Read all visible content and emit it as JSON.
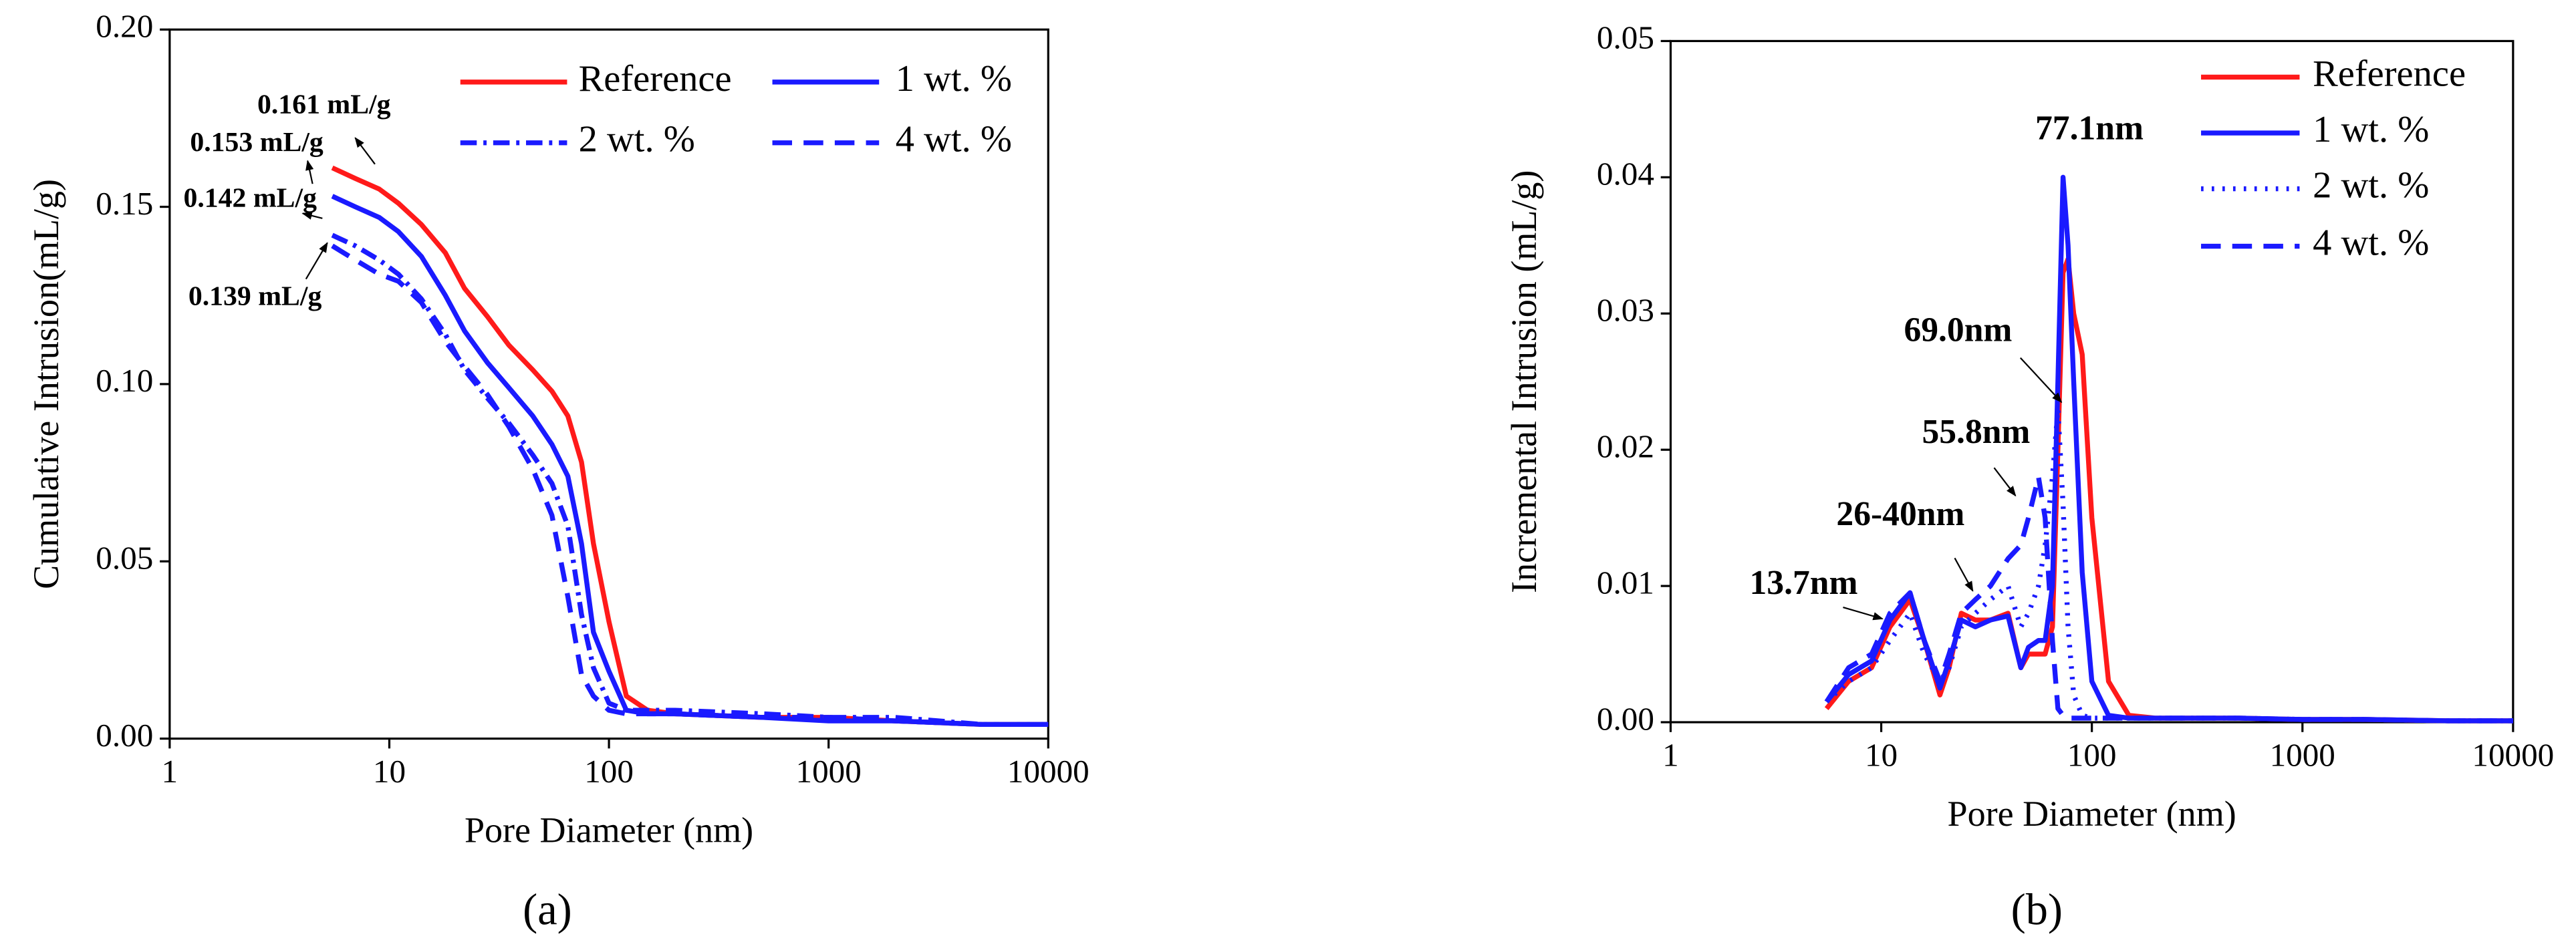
{
  "chart_data": [
    {
      "type": "line",
      "panel_label": "(a)",
      "x_label": "Pore Diameter (nm)",
      "y_label": "Cumulative Intrusion(mL/g)",
      "xscale": "log",
      "xlim": [
        1,
        10000
      ],
      "xticks": [
        1,
        10,
        100,
        1000,
        10000
      ],
      "ylim": [
        0,
        0.2
      ],
      "yticks": [
        {
          "value": 0,
          "label": "0.00"
        },
        {
          "value": 0.05,
          "label": "0.05"
        },
        {
          "value": 0.1,
          "label": "0.10"
        },
        {
          "value": 0.15,
          "label": "0.15"
        },
        {
          "value": 0.2,
          "label": "0.20"
        }
      ],
      "legend": "upper right",
      "x": [
        5.5,
        7,
        9,
        11,
        14,
        18,
        22,
        28,
        35,
        45,
        55,
        65,
        75,
        85,
        100,
        120,
        150,
        200,
        500,
        1000,
        2000,
        5000,
        10000
      ],
      "series": [
        {
          "name": "Reference",
          "color": "#ff1a1a",
          "linestyle": "solid",
          "values": [
            0.161,
            0.158,
            0.155,
            0.151,
            0.145,
            0.137,
            0.127,
            0.119,
            0.111,
            0.104,
            0.098,
            0.091,
            0.078,
            0.055,
            0.033,
            0.012,
            0.008,
            0.007,
            0.006,
            0.006,
            0.005,
            0.004,
            0.004
          ]
        },
        {
          "name": "1 wt. %",
          "color": "#1a1aff",
          "linestyle": "solid",
          "values": [
            0.153,
            0.15,
            0.147,
            0.143,
            0.136,
            0.125,
            0.115,
            0.106,
            0.099,
            0.091,
            0.083,
            0.074,
            0.055,
            0.03,
            0.019,
            0.008,
            0.007,
            0.007,
            0.006,
            0.005,
            0.005,
            0.004,
            0.004
          ]
        },
        {
          "name": "2 wt. %",
          "color": "#1a1aff",
          "linestyle": "dashdot",
          "values": [
            0.142,
            0.139,
            0.135,
            0.131,
            0.124,
            0.114,
            0.104,
            0.096,
            0.089,
            0.08,
            0.072,
            0.06,
            0.035,
            0.02,
            0.01,
            0.008,
            0.008,
            0.008,
            0.007,
            0.006,
            0.006,
            0.004,
            0.004
          ]
        },
        {
          "name": "4 wt. %",
          "color": "#1a1aff",
          "linestyle": "dash",
          "values": [
            0.139,
            0.135,
            0.131,
            0.129,
            0.123,
            0.112,
            0.105,
            0.097,
            0.088,
            0.076,
            0.063,
            0.04,
            0.018,
            0.012,
            0.008,
            0.007,
            0.007,
            0.007,
            0.006,
            0.006,
            0.005,
            0.004,
            0.004
          ]
        }
      ],
      "annotations": [
        "0.161 mL/g",
        "0.153 mL/g",
        "0.142 mL/g",
        "0.139 mL/g"
      ]
    },
    {
      "type": "line",
      "panel_label": "(b)",
      "x_label": "Pore Diameter (nm)",
      "y_label": "Incremental Intrusion (mL/g)",
      "xscale": "log",
      "xlim": [
        1,
        10000
      ],
      "xticks": [
        1,
        10,
        100,
        1000,
        10000
      ],
      "ylim": [
        0,
        0.05
      ],
      "yticks": [
        {
          "value": 0,
          "label": "0.00"
        },
        {
          "value": 0.01,
          "label": "0.01"
        },
        {
          "value": 0.02,
          "label": "0.02"
        },
        {
          "value": 0.03,
          "label": "0.03"
        },
        {
          "value": 0.04,
          "label": "0.04"
        },
        {
          "value": 0.05,
          "label": "0.05"
        }
      ],
      "legend": "upper right",
      "x": [
        5.5,
        7,
        9,
        11,
        13.7,
        16,
        19,
        21,
        24,
        28,
        33,
        40,
        46,
        50,
        55.8,
        60,
        65,
        69,
        73,
        77.1,
        82,
        90,
        100,
        120,
        150,
        200,
        500,
        1000,
        2000,
        5000,
        10000
      ],
      "series": [
        {
          "name": "Reference",
          "color": "#ff1a1a",
          "linestyle": "solid",
          "values": [
            0.001,
            0.003,
            0.004,
            0.007,
            0.009,
            0.006,
            0.002,
            0.004,
            0.008,
            0.0075,
            0.0075,
            0.008,
            0.004,
            0.005,
            0.005,
            0.005,
            0.007,
            0.02,
            0.033,
            0.034,
            0.03,
            0.027,
            0.015,
            0.003,
            0.0005,
            0.0003,
            0.0003,
            0.0002,
            0.0002,
            0.0001,
            0.0001
          ]
        },
        {
          "name": "1 wt. %",
          "color": "#1a1aff",
          "linestyle": "solid",
          "values": [
            0.0015,
            0.0035,
            0.0045,
            0.0075,
            0.0095,
            0.006,
            0.0025,
            0.0045,
            0.0075,
            0.007,
            0.0075,
            0.0078,
            0.004,
            0.0055,
            0.006,
            0.006,
            0.01,
            0.025,
            0.04,
            0.035,
            0.025,
            0.011,
            0.003,
            0.0005,
            0.0003,
            0.0003,
            0.0003,
            0.0002,
            0.0002,
            0.0001,
            0.0001
          ]
        },
        {
          "name": "2 wt. %",
          "color": "#1a1aff",
          "linestyle": "dot",
          "values": [
            0.0015,
            0.003,
            0.004,
            0.006,
            0.008,
            0.005,
            0.003,
            0.004,
            0.007,
            0.008,
            0.009,
            0.01,
            0.007,
            0.008,
            0.01,
            0.013,
            0.018,
            0.023,
            0.016,
            0.007,
            0.002,
            0.0005,
            0.0003,
            0.0003,
            0.0003,
            0.0003,
            0.0003,
            0.0002,
            0.0002,
            0.0001,
            0.0001
          ]
        },
        {
          "name": "4 wt. %",
          "color": "#1a1aff",
          "linestyle": "dash",
          "values": [
            0.0015,
            0.004,
            0.005,
            0.008,
            0.0095,
            0.006,
            0.003,
            0.005,
            0.008,
            0.009,
            0.01,
            0.012,
            0.013,
            0.015,
            0.018,
            0.015,
            0.006,
            0.001,
            0.0005,
            0.0003,
            0.0003,
            0.0003,
            0.0003,
            0.0003,
            0.0003,
            0.0003,
            0.0003,
            0.0002,
            0.0002,
            0.0001,
            0.0001
          ]
        }
      ],
      "annotations": [
        "77.1nm",
        "69.0nm",
        "55.8nm",
        "26-40nm",
        "13.7nm"
      ]
    }
  ]
}
